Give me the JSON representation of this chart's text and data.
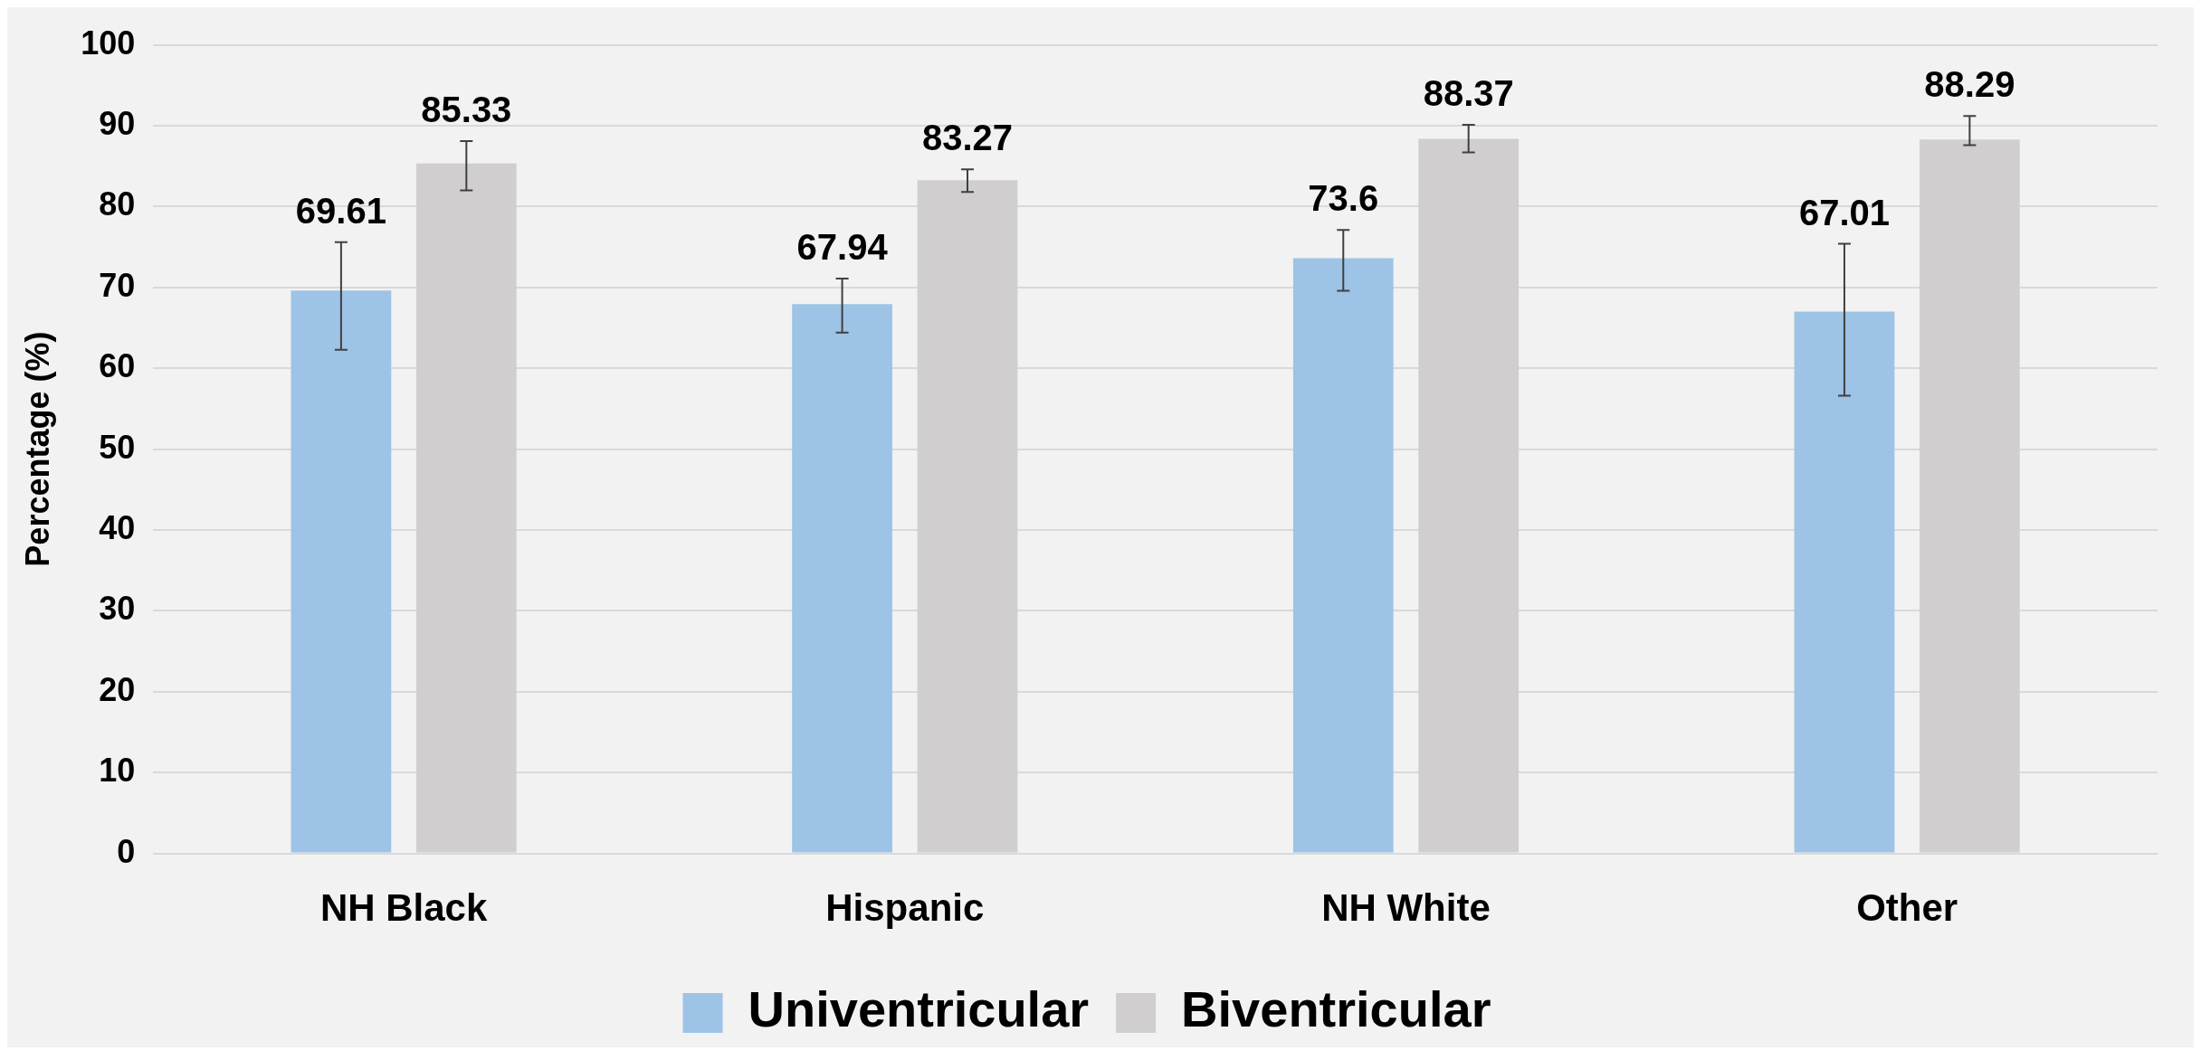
{
  "chart_data": {
    "type": "bar",
    "ylabel": "Percentage (%)",
    "categories": [
      "NH Black",
      "Hispanic",
      "NH White",
      "Other"
    ],
    "series": [
      {
        "name": "Univentricular",
        "color": "#9dc3e6",
        "values": [
          69.61,
          67.94,
          73.6,
          67.01
        ],
        "errors": [
          [
            62.3,
            75.6
          ],
          [
            64.4,
            71.1
          ],
          [
            69.6,
            77.1
          ],
          [
            56.6,
            75.4
          ]
        ]
      },
      {
        "name": "Biventricular",
        "color": "#d0cece",
        "values": [
          85.33,
          83.27,
          88.37,
          88.29
        ],
        "errors": [
          [
            82.0,
            88.1
          ],
          [
            81.8,
            84.6
          ],
          [
            86.7,
            90.1
          ],
          [
            87.6,
            91.2
          ]
        ]
      }
    ],
    "ylim": [
      0,
      100
    ],
    "yticks": [
      0,
      10,
      20,
      30,
      40,
      50,
      60,
      70,
      80,
      90,
      100
    ],
    "grid": "y",
    "legend": "bottom",
    "data_labels": true
  }
}
